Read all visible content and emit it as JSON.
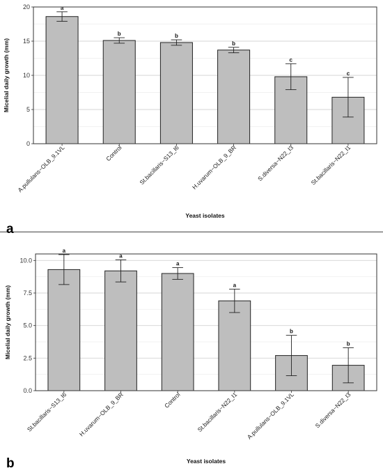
{
  "chart_data": [
    {
      "panel_label": "a",
      "type": "bar",
      "xlabel": "Yeast isolates",
      "ylabel": "Micelial daily growth (mm)",
      "ylim": [
        0,
        20
      ],
      "yticks": [
        "0",
        "5",
        "10",
        "15",
        "20"
      ],
      "ytick_values": [
        0,
        5,
        10,
        15,
        20
      ],
      "grid": true,
      "bar_color": "#bebebe",
      "categories": [
        "A.pullulans−OLB_9.1VL",
        "Control",
        "St.bacillaris−S13_I6",
        "H.uvarum−OLB_9_BR",
        "S.diversa−N22_I3",
        "St.bacillaris−N22_I1"
      ],
      "values": [
        18.6,
        15.1,
        14.8,
        13.7,
        9.8,
        6.8
      ],
      "errors": [
        0.7,
        0.4,
        0.4,
        0.4,
        1.9,
        2.9
      ],
      "labels": [
        "a",
        "b",
        "b",
        "b",
        "c",
        "c"
      ]
    },
    {
      "panel_label": "b",
      "type": "bar",
      "xlabel": "Yeast isolates",
      "ylabel": "Micelial daily growth (mm)",
      "ylim": [
        0,
        10.5
      ],
      "yticks": [
        "0.0",
        "2.5",
        "5.0",
        "7.5",
        "10.0"
      ],
      "ytick_values": [
        0,
        2.5,
        5,
        7.5,
        10
      ],
      "grid": true,
      "bar_color": "#bebebe",
      "categories": [
        "St.bacillaris−S13_I6",
        "H.uvarum−OLB_9_BR",
        "Control",
        "St.bacillaris−N22_I1",
        "A.pullulans−OLB_9.1VL",
        "S.diversa−N22_I3"
      ],
      "values": [
        9.3,
        9.2,
        9.0,
        6.9,
        2.7,
        1.95
      ],
      "errors": [
        1.15,
        0.85,
        0.45,
        0.9,
        1.55,
        1.35
      ],
      "labels": [
        "a",
        "a",
        "a",
        "a",
        "b",
        "b"
      ]
    }
  ]
}
